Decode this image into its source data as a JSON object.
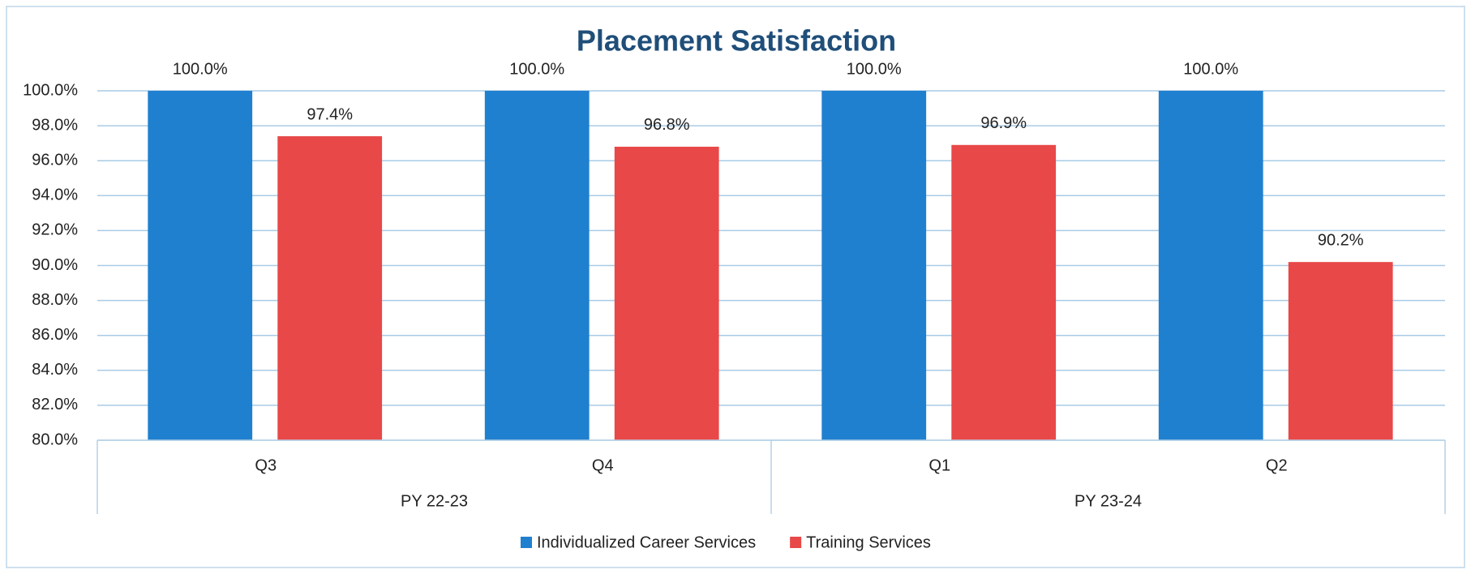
{
  "chart_data": {
    "type": "bar",
    "title": "Placement Satisfaction",
    "categories": [
      "Q3",
      "Q4",
      "Q1",
      "Q2"
    ],
    "groups": [
      "PY 22-23",
      "PY 23-24"
    ],
    "series": [
      {
        "name": "Individualized Career Services",
        "color": "#2080d0",
        "values": [
          100,
          100,
          100,
          100
        ],
        "value_labels": [
          "100.0%",
          "100.0%",
          "100.0%",
          "100.0%"
        ]
      },
      {
        "name": "Training Services",
        "color": "#e84848",
        "values": [
          97.4,
          96.8,
          96.9,
          90.2
        ],
        "value_labels": [
          "97.4%",
          "96.8%",
          "96.9%",
          "90.2%"
        ]
      }
    ],
    "ylim": [
      80,
      100
    ],
    "yticks": [
      {
        "value": 80,
        "label": "80.0%"
      },
      {
        "value": 82,
        "label": "82.0%"
      },
      {
        "value": 84,
        "label": "84.0%"
      },
      {
        "value": 86,
        "label": "86.0%"
      },
      {
        "value": 88,
        "label": "88.0%"
      },
      {
        "value": 90,
        "label": "90.0%"
      },
      {
        "value": 92,
        "label": "92.0%"
      },
      {
        "value": 94,
        "label": "94.0%"
      },
      {
        "value": 96,
        "label": "96.0%"
      },
      {
        "value": 98,
        "label": "98.0%"
      },
      {
        "value": 100,
        "label": "100.0%"
      }
    ],
    "grid": true,
    "legend": "bottom"
  }
}
